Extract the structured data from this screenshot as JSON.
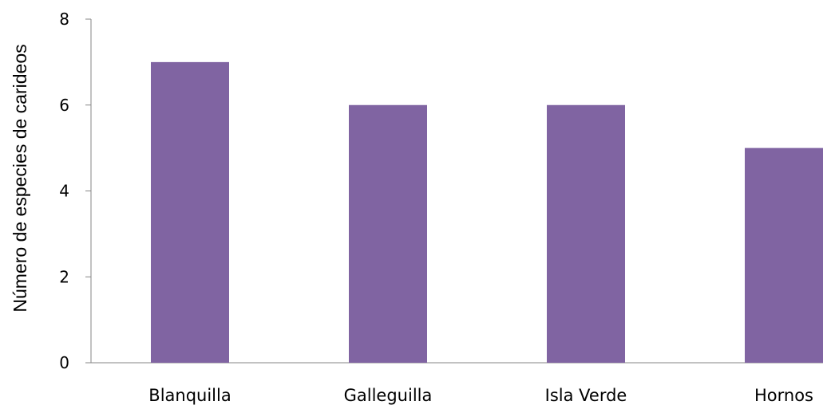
{
  "chart_data": {
    "type": "bar",
    "categories": [
      "Blanquilla",
      "Galleguilla",
      "Isla Verde",
      "Hornos"
    ],
    "values": [
      7,
      6,
      6,
      5
    ],
    "title": "",
    "xlabel": "",
    "ylabel": "Número de especies de carideos",
    "ylim": [
      0,
      8
    ],
    "yticks": [
      0,
      2,
      4,
      6,
      8
    ],
    "grid": false,
    "legend": "none",
    "bar_color": "#8064A2"
  }
}
